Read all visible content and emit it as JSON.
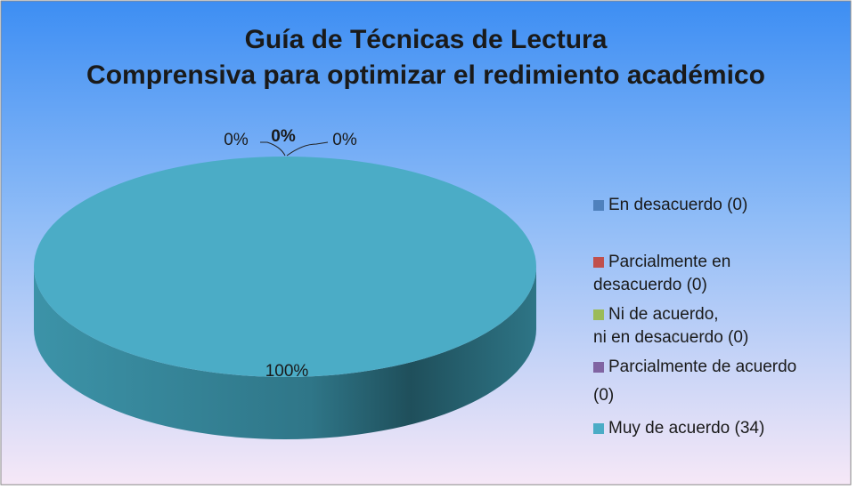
{
  "chart_data": {
    "type": "pie3d",
    "title": "Guía de Técnicas de Lectura Comprensiva para optimizar el redimiento académico",
    "categories": [
      "En desacuerdo (0)",
      "Parcialmente en desacuerdo (0)",
      "Ni de acuerdo, ni en desacuerdo (0)",
      "Parcialmente de acuerdo (0)",
      "Muy de acuerdo (34)"
    ],
    "values": [
      0,
      0,
      0,
      0,
      100
    ],
    "value_labels": [
      "0%",
      "0%",
      "0%",
      null,
      "100%"
    ],
    "colors": [
      "#4f81bd",
      "#c0504d",
      "#9bbb59",
      "#8064a2",
      "#4bacc6"
    ],
    "legend": "right"
  }
}
